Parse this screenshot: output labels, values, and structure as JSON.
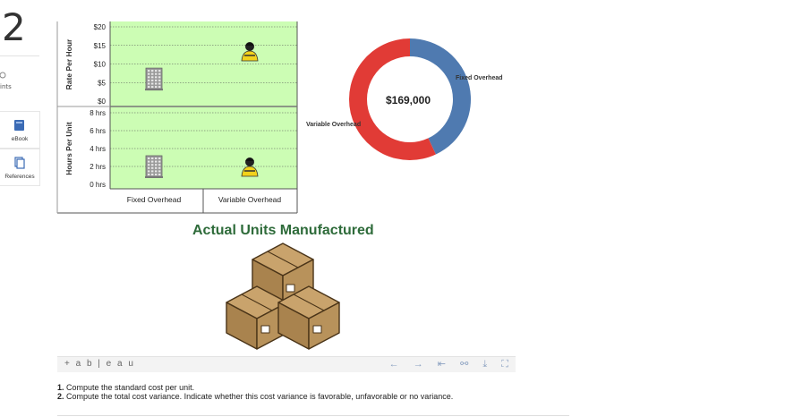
{
  "question": {
    "number": "2"
  },
  "sidebar": {
    "points_label": "ints",
    "ebook_label": "eBook",
    "references_label": "References"
  },
  "viz": {
    "top_axis_label": "Rate Per Hour",
    "bottom_axis_label": "Hours Per Unit",
    "rate_ticks": [
      "$20",
      "$15",
      "$10",
      "$5",
      "$0"
    ],
    "hours_ticks": [
      "8 hrs",
      "6 hrs",
      "4 hrs",
      "2 hrs",
      "0 hrs"
    ],
    "categories": [
      "Fixed Overhead",
      "Variable Overhead"
    ],
    "donut_total": "$169,000",
    "donut_fixed_label": "Fixed Overhead",
    "donut_variable_label": "Variable Overhead",
    "units_title": "Actual Units Manufactured",
    "colors": {
      "plot_bg": "#ccfdb4",
      "donut_fixed": "#4f7ab0",
      "donut_variable": "#e13b36",
      "title": "#2e6b3a",
      "box": "#b5915c"
    }
  },
  "chart_data": [
    {
      "type": "scatter",
      "ylabel": "Rate Per Hour",
      "categories": [
        "Fixed Overhead",
        "Variable Overhead"
      ],
      "values": [
        6,
        13.5
      ],
      "ylim": [
        0,
        20
      ],
      "grid": true
    },
    {
      "type": "scatter",
      "ylabel": "Hours Per Unit",
      "categories": [
        "Fixed Overhead",
        "Variable Overhead"
      ],
      "values": [
        2,
        2
      ],
      "ylim": [
        0,
        8
      ],
      "grid": true
    },
    {
      "type": "pie",
      "categories": [
        "Fixed Overhead",
        "Variable Overhead"
      ],
      "values": [
        0.43,
        0.57
      ],
      "center_label": "$169,000"
    }
  ],
  "toolbar": {
    "logo": "+ a b | e a u",
    "undo": "←",
    "redo": "→",
    "revert": "⇤",
    "share": "⚯",
    "download": "⤓",
    "fullscreen": "⛶"
  },
  "instructions": {
    "line1_num": "1.",
    "line1": "Compute the standard cost per unit.",
    "line2_num": "2.",
    "line2": "Compute the total cost variance. Indicate whether this cost variance is favorable, unfavorable or no variance."
  }
}
